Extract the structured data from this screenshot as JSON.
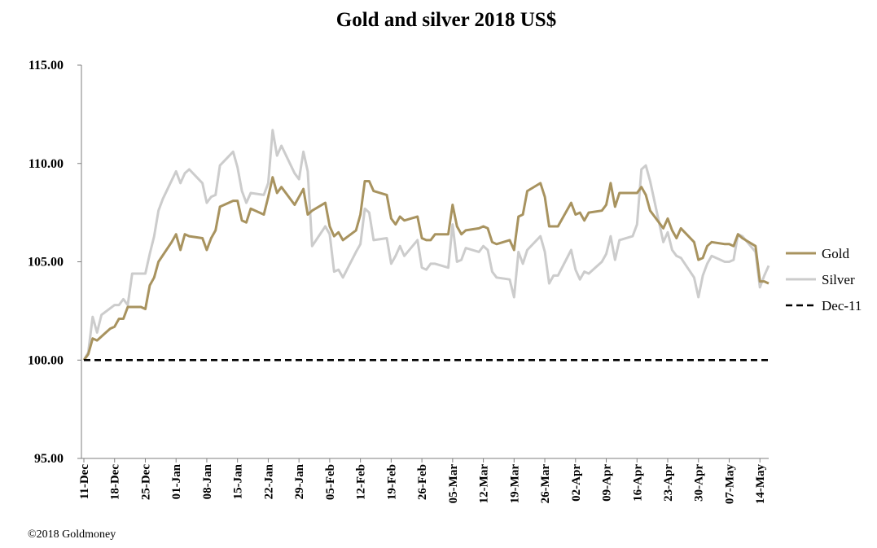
{
  "chart_data": {
    "type": "line",
    "title": "Gold and silver 2018  US$",
    "xlabel": "",
    "ylabel": "",
    "ylim": [
      95,
      115
    ],
    "yticks": [
      "95.00",
      "100.00",
      "105.00",
      "110.00",
      "115.00"
    ],
    "xlim": [
      "11-Dec",
      "14-May"
    ],
    "xtick_labels": [
      "11-Dec",
      "18-Dec",
      "25-Dec",
      "01-Jan",
      "08-Jan",
      "15-Jan",
      "22-Jan",
      "29-Jan",
      "05-Feb",
      "12-Feb",
      "19-Feb",
      "26-Feb",
      "05-Mar",
      "12-Mar",
      "19-Mar",
      "26-Mar",
      "02-Apr",
      "09-Apr",
      "16-Apr",
      "23-Apr",
      "30-Apr",
      "07-May",
      "14-May"
    ],
    "grid": false,
    "legend_position": "right",
    "credit": "©2018 Goldmoney",
    "series": [
      {
        "name": "Gold",
        "color": "#a8935f",
        "dash": "solid",
        "points": [
          [
            0,
            100.0
          ],
          [
            1,
            100.3
          ],
          [
            2,
            101.1
          ],
          [
            3,
            101.0
          ],
          [
            6,
            101.6
          ],
          [
            7,
            101.7
          ],
          [
            8,
            102.1
          ],
          [
            9,
            102.1
          ],
          [
            10,
            102.7
          ],
          [
            13,
            102.7
          ],
          [
            14,
            102.6
          ],
          [
            15,
            103.8
          ],
          [
            16,
            104.2
          ],
          [
            17,
            105.0
          ],
          [
            20,
            106.0
          ],
          [
            21,
            106.4
          ],
          [
            22,
            105.6
          ],
          [
            23,
            106.4
          ],
          [
            24,
            106.3
          ],
          [
            27,
            106.2
          ],
          [
            28,
            105.6
          ],
          [
            29,
            106.2
          ],
          [
            30,
            106.6
          ],
          [
            31,
            107.8
          ],
          [
            34,
            108.1
          ],
          [
            35,
            108.1
          ],
          [
            36,
            107.1
          ],
          [
            37,
            107.0
          ],
          [
            38,
            107.7
          ],
          [
            41,
            107.4
          ],
          [
            42,
            108.3
          ],
          [
            43,
            109.3
          ],
          [
            44,
            108.5
          ],
          [
            45,
            108.8
          ],
          [
            48,
            107.9
          ],
          [
            49,
            108.3
          ],
          [
            50,
            108.7
          ],
          [
            51,
            107.4
          ],
          [
            52,
            107.6
          ],
          [
            55,
            108.0
          ],
          [
            56,
            106.8
          ],
          [
            57,
            106.3
          ],
          [
            58,
            106.5
          ],
          [
            59,
            106.1
          ],
          [
            62,
            106.6
          ],
          [
            63,
            107.4
          ],
          [
            64,
            109.1
          ],
          [
            65,
            109.1
          ],
          [
            66,
            108.6
          ],
          [
            69,
            108.4
          ],
          [
            70,
            107.2
          ],
          [
            71,
            106.9
          ],
          [
            72,
            107.3
          ],
          [
            73,
            107.1
          ],
          [
            76,
            107.3
          ],
          [
            77,
            106.2
          ],
          [
            78,
            106.1
          ],
          [
            79,
            106.1
          ],
          [
            80,
            106.4
          ],
          [
            83,
            106.4
          ],
          [
            84,
            107.9
          ],
          [
            85,
            106.8
          ],
          [
            86,
            106.4
          ],
          [
            87,
            106.6
          ],
          [
            90,
            106.7
          ],
          [
            91,
            106.8
          ],
          [
            92,
            106.7
          ],
          [
            93,
            106.0
          ],
          [
            94,
            105.9
          ],
          [
            97,
            106.1
          ],
          [
            98,
            105.6
          ],
          [
            99,
            107.3
          ],
          [
            100,
            107.4
          ],
          [
            101,
            108.6
          ],
          [
            104,
            109.0
          ],
          [
            105,
            108.3
          ],
          [
            106,
            106.8
          ],
          [
            107,
            106.8
          ],
          [
            108,
            106.8
          ],
          [
            111,
            108.0
          ],
          [
            112,
            107.4
          ],
          [
            113,
            107.5
          ],
          [
            114,
            107.1
          ],
          [
            115,
            107.5
          ],
          [
            118,
            107.6
          ],
          [
            119,
            107.9
          ],
          [
            120,
            109.0
          ],
          [
            121,
            107.8
          ],
          [
            122,
            108.5
          ],
          [
            125,
            108.5
          ],
          [
            126,
            108.5
          ],
          [
            127,
            108.8
          ],
          [
            128,
            108.4
          ],
          [
            129,
            107.6
          ],
          [
            132,
            106.7
          ],
          [
            133,
            107.2
          ],
          [
            134,
            106.6
          ],
          [
            135,
            106.2
          ],
          [
            136,
            106.7
          ],
          [
            139,
            106.0
          ],
          [
            140,
            105.1
          ],
          [
            141,
            105.2
          ],
          [
            142,
            105.8
          ],
          [
            143,
            106.0
          ],
          [
            146,
            105.9
          ],
          [
            147,
            105.9
          ],
          [
            148,
            105.8
          ],
          [
            149,
            106.4
          ],
          [
            150,
            106.2
          ],
          [
            153,
            105.8
          ],
          [
            154,
            104.0
          ],
          [
            155,
            104.0
          ],
          [
            156,
            103.9
          ]
        ]
      },
      {
        "name": "Silver",
        "color": "#cccccc",
        "dash": "solid",
        "points": [
          [
            0,
            100.0
          ],
          [
            1,
            100.4
          ],
          [
            2,
            102.2
          ],
          [
            3,
            101.4
          ],
          [
            4,
            102.3
          ],
          [
            7,
            102.8
          ],
          [
            8,
            102.8
          ],
          [
            9,
            103.1
          ],
          [
            10,
            102.8
          ],
          [
            11,
            104.4
          ],
          [
            14,
            104.4
          ],
          [
            15,
            105.4
          ],
          [
            16,
            106.3
          ],
          [
            17,
            107.6
          ],
          [
            18,
            108.2
          ],
          [
            21,
            109.6
          ],
          [
            22,
            109.0
          ],
          [
            23,
            109.5
          ],
          [
            24,
            109.7
          ],
          [
            27,
            109.0
          ],
          [
            28,
            108.0
          ],
          [
            29,
            108.3
          ],
          [
            30,
            108.4
          ],
          [
            31,
            109.9
          ],
          [
            34,
            110.6
          ],
          [
            35,
            109.8
          ],
          [
            36,
            108.6
          ],
          [
            37,
            108.0
          ],
          [
            38,
            108.5
          ],
          [
            41,
            108.4
          ],
          [
            42,
            109.0
          ],
          [
            43,
            111.7
          ],
          [
            44,
            110.4
          ],
          [
            45,
            110.9
          ],
          [
            48,
            109.5
          ],
          [
            49,
            109.2
          ],
          [
            50,
            110.6
          ],
          [
            51,
            109.6
          ],
          [
            52,
            105.8
          ],
          [
            55,
            106.8
          ],
          [
            56,
            106.4
          ],
          [
            57,
            104.5
          ],
          [
            58,
            104.6
          ],
          [
            59,
            104.2
          ],
          [
            62,
            105.5
          ],
          [
            63,
            105.9
          ],
          [
            64,
            107.7
          ],
          [
            65,
            107.5
          ],
          [
            66,
            106.1
          ],
          [
            69,
            106.2
          ],
          [
            70,
            104.9
          ],
          [
            71,
            105.3
          ],
          [
            72,
            105.8
          ],
          [
            73,
            105.3
          ],
          [
            76,
            106.1
          ],
          [
            77,
            104.7
          ],
          [
            78,
            104.6
          ],
          [
            79,
            104.9
          ],
          [
            80,
            104.9
          ],
          [
            83,
            104.7
          ],
          [
            84,
            106.9
          ],
          [
            85,
            105.0
          ],
          [
            86,
            105.1
          ],
          [
            87,
            105.7
          ],
          [
            90,
            105.5
          ],
          [
            91,
            105.8
          ],
          [
            92,
            105.6
          ],
          [
            93,
            104.5
          ],
          [
            94,
            104.2
          ],
          [
            97,
            104.1
          ],
          [
            98,
            103.2
          ],
          [
            99,
            105.5
          ],
          [
            100,
            104.9
          ],
          [
            101,
            105.6
          ],
          [
            104,
            106.3
          ],
          [
            105,
            105.5
          ],
          [
            106,
            103.9
          ],
          [
            107,
            104.3
          ],
          [
            108,
            104.3
          ],
          [
            111,
            105.6
          ],
          [
            112,
            104.6
          ],
          [
            113,
            104.1
          ],
          [
            114,
            104.5
          ],
          [
            115,
            104.4
          ],
          [
            118,
            105.0
          ],
          [
            119,
            105.4
          ],
          [
            120,
            106.3
          ],
          [
            121,
            105.1
          ],
          [
            122,
            106.1
          ],
          [
            125,
            106.3
          ],
          [
            126,
            106.9
          ],
          [
            127,
            109.7
          ],
          [
            128,
            109.9
          ],
          [
            129,
            109.1
          ],
          [
            132,
            106.0
          ],
          [
            133,
            106.5
          ],
          [
            134,
            105.6
          ],
          [
            135,
            105.3
          ],
          [
            136,
            105.2
          ],
          [
            139,
            104.2
          ],
          [
            140,
            103.2
          ],
          [
            141,
            104.3
          ],
          [
            142,
            104.9
          ],
          [
            143,
            105.3
          ],
          [
            146,
            105.0
          ],
          [
            147,
            105.0
          ],
          [
            148,
            105.1
          ],
          [
            149,
            106.4
          ],
          [
            150,
            106.3
          ],
          [
            153,
            105.5
          ],
          [
            154,
            103.7
          ],
          [
            155,
            104.3
          ],
          [
            156,
            104.8
          ]
        ]
      },
      {
        "name": "Dec-11",
        "color": "#000000",
        "dash": "dashed",
        "points": [
          [
            0,
            100.0
          ],
          [
            156,
            100.0
          ]
        ]
      }
    ]
  }
}
